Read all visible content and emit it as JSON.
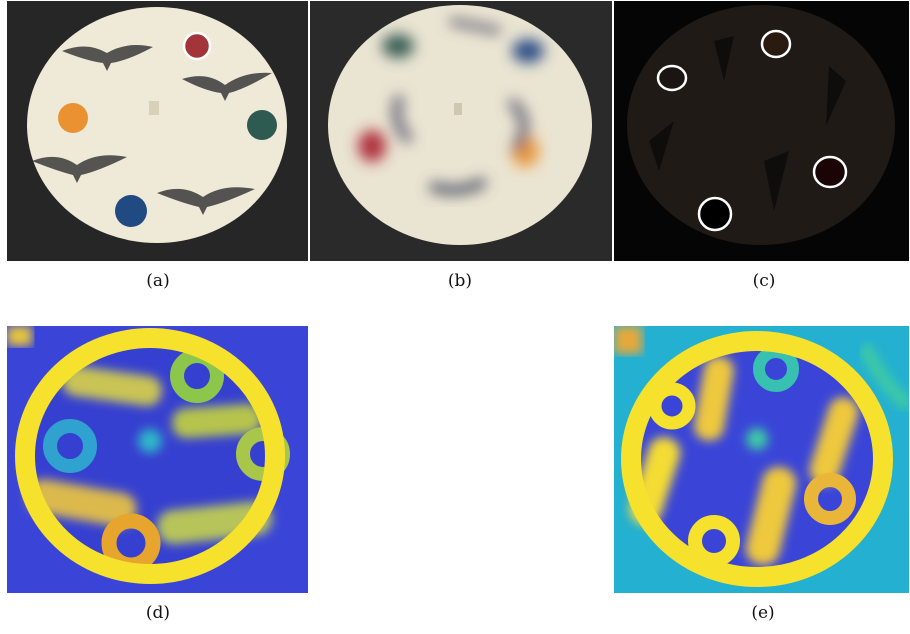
{
  "captions": {
    "a": "(a)",
    "b": "(b)",
    "c": "(c)",
    "d": "(d)",
    "e": "(e)"
  },
  "colors": {
    "disc": "#efe9d8",
    "background_dark": "#262626",
    "dot_red": "#a3343a",
    "dot_orange": "#ea9232",
    "dot_green": "#2f5a52",
    "dot_blue": "#214a82",
    "heat_low": "#3a45d8",
    "heat_mid": "#2fb6c8",
    "heat_high": "#f6e22c"
  },
  "icons": [
    "eagle-icon"
  ]
}
